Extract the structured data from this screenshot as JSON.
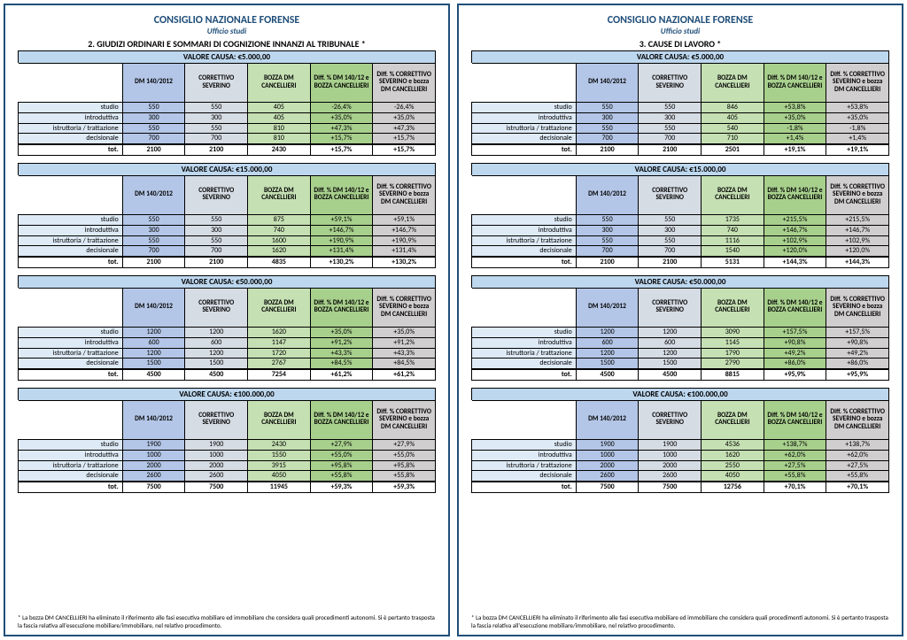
{
  "org_title": "CONSIGLIO NAZIONALE FORENSE",
  "org_subtitle": "Ufficio studi",
  "footnote": "* La bozza DM CANCELLIERI ha eliminato il riferimento alle fasi esecutiva mobiliare ed immobiliare che considera quali procedimenti autonomi. Si è pertanto trasposta la fascia relativa all'esecuzione mobiliare/immobiliare, nel relativo procedimento.",
  "row_labels": [
    "studio",
    "introduttiva",
    "istruttoria / trattazione",
    "decisionale",
    "tot."
  ],
  "headers": [
    "DM 140/2012",
    "CORRETTIVO SEVERINO",
    "BOZZA DM CANCELLIERI",
    "Diff. % DM 140/12 e BOZZA CANCELLIERI",
    "Diff. % CORRETTIVO SEVERINO e bozza DM CANCELLIERI"
  ],
  "pages": [
    {
      "section_title": "2. GIUDIZI ORDINARI E SOMMARI DI COGNIZIONE INNANZI AL TRIBUNALE *",
      "tables": [
        {
          "valore": "VALORE CAUSA: €5.000,00",
          "rows": [
            [
              "550",
              "550",
              "405",
              "-26,4%",
              "-26,4%"
            ],
            [
              "300",
              "300",
              "405",
              "+35,0%",
              "+35,0%"
            ],
            [
              "550",
              "550",
              "810",
              "+47,3%",
              "+47,3%"
            ],
            [
              "700",
              "700",
              "810",
              "+15,7%",
              "+15,7%"
            ],
            [
              "2100",
              "2100",
              "2430",
              "+15,7%",
              "+15,7%"
            ]
          ]
        },
        {
          "valore": "VALORE CAUSA: €15.000,00",
          "rows": [
            [
              "550",
              "550",
              "875",
              "+59,1%",
              "+59,1%"
            ],
            [
              "300",
              "300",
              "740",
              "+146,7%",
              "+146,7%"
            ],
            [
              "550",
              "550",
              "1600",
              "+190,9%",
              "+190,9%"
            ],
            [
              "700",
              "700",
              "1620",
              "+131,4%",
              "+131,4%"
            ],
            [
              "2100",
              "2100",
              "4835",
              "+130,2%",
              "+130,2%"
            ]
          ]
        },
        {
          "valore": "VALORE CAUSA: €50.000,00",
          "rows": [
            [
              "1200",
              "1200",
              "1620",
              "+35,0%",
              "+35,0%"
            ],
            [
              "600",
              "600",
              "1147",
              "+91,2%",
              "+91,2%"
            ],
            [
              "1200",
              "1200",
              "1720",
              "+43,3%",
              "+43,3%"
            ],
            [
              "1500",
              "1500",
              "2767",
              "+84,5%",
              "+84,5%"
            ],
            [
              "4500",
              "4500",
              "7254",
              "+61,2%",
              "+61,2%"
            ]
          ]
        },
        {
          "valore": "VALORE CAUSA: €100.000,00",
          "rows": [
            [
              "1900",
              "1900",
              "2430",
              "+27,9%",
              "+27,9%"
            ],
            [
              "1000",
              "1000",
              "1550",
              "+55,0%",
              "+55,0%"
            ],
            [
              "2000",
              "2000",
              "3915",
              "+95,8%",
              "+95,8%"
            ],
            [
              "2600",
              "2600",
              "4050",
              "+55,8%",
              "+55,8%"
            ],
            [
              "7500",
              "7500",
              "11945",
              "+59,3%",
              "+59,3%"
            ]
          ]
        }
      ]
    },
    {
      "section_title": "3. CAUSE DI LAVORO *",
      "tables": [
        {
          "valore": "VALORE CAUSA: €5.000,00",
          "rows": [
            [
              "550",
              "550",
              "846",
              "+53,8%",
              "+53,8%"
            ],
            [
              "300",
              "300",
              "405",
              "+35,0%",
              "+35,0%"
            ],
            [
              "550",
              "550",
              "540",
              "-1,8%",
              "-1,8%"
            ],
            [
              "700",
              "700",
              "710",
              "+1,4%",
              "+1,4%"
            ],
            [
              "2100",
              "2100",
              "2501",
              "+19,1%",
              "+19,1%"
            ]
          ]
        },
        {
          "valore": "VALORE CAUSA: €15.000,00",
          "rows": [
            [
              "550",
              "550",
              "1735",
              "+215,5%",
              "+215,5%"
            ],
            [
              "300",
              "300",
              "740",
              "+146,7%",
              "+146,7%"
            ],
            [
              "550",
              "550",
              "1116",
              "+102,9%",
              "+102,9%"
            ],
            [
              "700",
              "700",
              "1540",
              "+120,0%",
              "+120,0%"
            ],
            [
              "2100",
              "2100",
              "5131",
              "+144,3%",
              "+144,3%"
            ]
          ]
        },
        {
          "valore": "VALORE CAUSA: €50.000,00",
          "rows": [
            [
              "1200",
              "1200",
              "3090",
              "+157,5%",
              "+157,5%"
            ],
            [
              "600",
              "600",
              "1145",
              "+90,8%",
              "+90,8%"
            ],
            [
              "1200",
              "1200",
              "1790",
              "+49,2%",
              "+49,2%"
            ],
            [
              "1500",
              "1500",
              "2790",
              "+86,0%",
              "+86,0%"
            ],
            [
              "4500",
              "4500",
              "8815",
              "+95,9%",
              "+95,9%"
            ]
          ]
        },
        {
          "valore": "VALORE CAUSA: €100.000,00",
          "rows": [
            [
              "1900",
              "1900",
              "4536",
              "+138,7%",
              "+138,7%"
            ],
            [
              "1000",
              "1000",
              "1620",
              "+62,0%",
              "+62,0%"
            ],
            [
              "2000",
              "2000",
              "2550",
              "+27,5%",
              "+27,5%"
            ],
            [
              "2600",
              "2600",
              "4050",
              "+55,8%",
              "+55,8%"
            ],
            [
              "7500",
              "7500",
              "12756",
              "+70,1%",
              "+70,1%"
            ]
          ]
        }
      ]
    }
  ]
}
